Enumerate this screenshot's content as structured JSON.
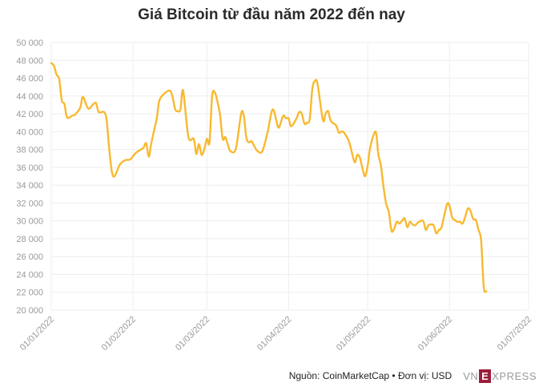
{
  "title": "Giá Bitcoin từ đầu năm 2022 đến nay",
  "footer": {
    "source": "Nguồn: CoinMarketCap • Đơn vị: USD",
    "logo_text": "VNEXPRESS",
    "logo_vn": "VN",
    "logo_e": "E",
    "logo_rest": "XPRESS"
  },
  "colors": {
    "line": "#f8b930",
    "grid": "#eeeeee",
    "tick_text": "#9a9a9a",
    "logo_bg": "#9c1e3a"
  },
  "chart_data": {
    "type": "line",
    "title": "Giá Bitcoin từ đầu năm 2022 đến nay",
    "xlabel": "",
    "ylabel": "",
    "ylim": [
      20000,
      50000
    ],
    "xlim": [
      "2022-01-01",
      "2022-07-01"
    ],
    "yticks": [
      20000,
      22000,
      24000,
      26000,
      28000,
      30000,
      32000,
      34000,
      36000,
      38000,
      40000,
      42000,
      44000,
      46000,
      48000,
      50000
    ],
    "ytick_labels": [
      "20 000",
      "22 000",
      "24 000",
      "26 000",
      "28 000",
      "30 000",
      "32 000",
      "34 000",
      "36 000",
      "38 000",
      "40 000",
      "42 000",
      "44 000",
      "46 000",
      "48 000",
      "50 000"
    ],
    "xticks": [
      "2022-01-01",
      "2022-02-01",
      "2022-03-01",
      "2022-04-01",
      "2022-05-01",
      "2022-06-01",
      "2022-07-01"
    ],
    "xtick_labels": [
      "01/01/2022",
      "01/02/2022",
      "01/03/2022",
      "01/04/2022",
      "01/05/2022",
      "01/06/2022",
      "01/07/2022"
    ],
    "grid": true,
    "legend": "none",
    "series": [
      {
        "x": [
          "2022-01-01",
          "2022-01-02",
          "2022-01-03",
          "2022-01-04",
          "2022-01-05",
          "2022-01-06",
          "2022-01-07",
          "2022-01-09",
          "2022-01-10",
          "2022-01-12",
          "2022-01-13",
          "2022-01-15",
          "2022-01-17",
          "2022-01-18",
          "2022-01-19",
          "2022-01-21",
          "2022-01-22",
          "2022-01-23",
          "2022-01-24",
          "2022-01-25",
          "2022-01-27",
          "2022-01-29",
          "2022-01-31",
          "2022-02-02",
          "2022-02-04",
          "2022-02-05",
          "2022-02-06",
          "2022-02-07",
          "2022-02-08",
          "2022-02-10",
          "2022-02-11",
          "2022-02-13",
          "2022-02-15",
          "2022-02-16",
          "2022-02-17",
          "2022-02-18",
          "2022-02-19",
          "2022-02-20",
          "2022-02-22",
          "2022-02-24",
          "2022-02-25",
          "2022-02-26",
          "2022-02-27",
          "2022-02-28",
          "2022-03-01",
          "2022-03-02",
          "2022-03-03",
          "2022-03-04",
          "2022-03-05",
          "2022-03-06",
          "2022-03-07",
          "2022-03-08",
          "2022-03-09",
          "2022-03-10",
          "2022-03-12",
          "2022-03-14",
          "2022-03-15",
          "2022-03-16",
          "2022-03-17",
          "2022-03-18",
          "2022-03-20",
          "2022-03-22",
          "2022-03-24",
          "2022-03-26",
          "2022-03-28",
          "2022-03-29",
          "2022-03-30",
          "2022-03-31",
          "2022-04-01",
          "2022-04-02",
          "2022-04-04",
          "2022-04-05",
          "2022-04-06",
          "2022-04-07",
          "2022-04-08",
          "2022-04-09",
          "2022-04-10",
          "2022-04-11",
          "2022-04-12",
          "2022-04-14",
          "2022-04-15",
          "2022-04-16",
          "2022-04-17",
          "2022-04-19",
          "2022-04-20",
          "2022-04-21",
          "2022-04-22",
          "2022-04-24",
          "2022-04-26",
          "2022-04-27",
          "2022-04-28",
          "2022-04-29",
          "2022-04-30",
          "2022-05-01",
          "2022-05-02",
          "2022-05-04",
          "2022-05-05",
          "2022-05-06",
          "2022-05-07",
          "2022-05-08",
          "2022-05-09",
          "2022-05-10",
          "2022-05-11",
          "2022-05-12",
          "2022-05-13",
          "2022-05-14",
          "2022-05-15",
          "2022-05-16",
          "2022-05-17",
          "2022-05-18",
          "2022-05-19",
          "2022-05-20",
          "2022-05-22",
          "2022-05-23",
          "2022-05-24",
          "2022-05-25",
          "2022-05-26",
          "2022-05-27",
          "2022-05-28",
          "2022-05-29",
          "2022-05-31",
          "2022-06-01",
          "2022-06-02",
          "2022-06-03",
          "2022-06-04",
          "2022-06-05",
          "2022-06-06",
          "2022-06-07",
          "2022-06-08",
          "2022-06-09",
          "2022-06-10",
          "2022-06-11",
          "2022-06-12",
          "2022-06-13",
          "2022-06-14",
          "2022-06-15"
        ],
        "y": [
          47700,
          47400,
          46400,
          45900,
          43500,
          43100,
          41600,
          41800,
          41900,
          42700,
          43900,
          42600,
          43100,
          43200,
          42200,
          42200,
          41300,
          38000,
          35500,
          35000,
          36300,
          36800,
          36900,
          37600,
          38000,
          38200,
          38700,
          37200,
          38800,
          41500,
          43500,
          44300,
          44600,
          43900,
          42500,
          42300,
          42500,
          44600,
          39400,
          39200,
          37500,
          38600,
          37400,
          38000,
          39200,
          38800,
          44000,
          44400,
          43400,
          41900,
          39200,
          39400,
          38500,
          37800,
          38100,
          42000,
          41800,
          39300,
          38800,
          38900,
          37900,
          37800,
          39900,
          42500,
          40500,
          41000,
          41800,
          41500,
          41500,
          40600,
          41500,
          42200,
          42000,
          40900,
          41000,
          41400,
          44800,
          45700,
          45300,
          41300,
          42000,
          42300,
          41200,
          40700,
          39900,
          40000,
          39900,
          38800,
          36600,
          37400,
          37100,
          35900,
          35000,
          36200,
          38300,
          40000,
          37500,
          36200,
          33800,
          31900,
          31000,
          28900,
          29100,
          29900,
          29700,
          30000,
          30300,
          29300,
          29900,
          29600,
          29500,
          29800,
          30000,
          29000,
          29500,
          29600,
          29500,
          28600,
          29000,
          29300,
          31800,
          31700,
          30400,
          30100,
          29900,
          29900,
          29700,
          30500,
          31400,
          31100,
          30200,
          30100,
          29000,
          27800,
          22600,
          22100
        ]
      }
    ]
  }
}
